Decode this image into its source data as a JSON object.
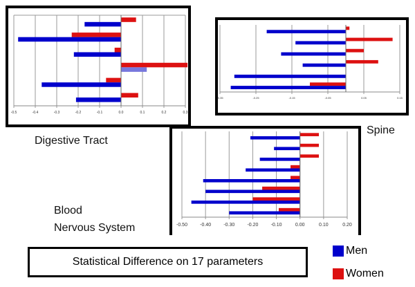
{
  "colors": {
    "men": "#0000cc",
    "women": "#dd1111",
    "men_highlight": "#7777dd",
    "grid": "#999999"
  },
  "chart_data": [
    {
      "type": "bar",
      "orientation": "horizontal",
      "title": "Digestive Tract",
      "xlim": [
        -0.5,
        0.3
      ],
      "ticks": [
        -0.5,
        -0.4,
        -0.3,
        -0.2,
        -0.1,
        0.0,
        0.1,
        0.2,
        0.3
      ],
      "tick_labels": [
        "-0.5",
        "-0.4",
        "-0.3",
        "-0.2",
        "-0.1",
        "0.0",
        "0.1",
        "0.2",
        "0.3"
      ],
      "grid": true,
      "series": [
        {
          "name": "Women",
          "values": [
            0.07,
            -0.23,
            -0.03,
            0.31,
            -0.07,
            0.08
          ]
        },
        {
          "name": "Men",
          "values": [
            -0.17,
            -0.48,
            -0.22,
            0.12,
            -0.37,
            -0.21
          ]
        }
      ],
      "highlighted_men_bar_index": 3
    },
    {
      "type": "bar",
      "orientation": "horizontal",
      "title": "Spine",
      "xlim": [
        -0.35,
        0.15
      ],
      "ticks": [
        -0.35,
        -0.25,
        -0.15,
        -0.05,
        0.05,
        0.15
      ],
      "tick_labels": [
        "-0.35",
        "-0.25",
        "-0.15",
        "-0.05",
        "0.05",
        "0.15"
      ],
      "grid": true,
      "series": [
        {
          "name": "Women",
          "values": [
            0.01,
            0.13,
            0.05,
            0.09,
            0.0,
            -0.1
          ]
        },
        {
          "name": "Men",
          "values": [
            -0.22,
            -0.14,
            -0.18,
            -0.12,
            -0.31,
            -0.32
          ]
        }
      ]
    },
    {
      "type": "bar",
      "orientation": "horizontal",
      "title": "Blood\nNervous System",
      "xlim": [
        -0.5,
        0.2
      ],
      "ticks": [
        -0.5,
        -0.4,
        -0.3,
        -0.2,
        -0.1,
        0.0,
        0.1,
        0.2
      ],
      "tick_labels": [
        "-0.50",
        "-0.40",
        "-0.30",
        "-0.20",
        "-0.10",
        "0.00",
        "0.10",
        "0.20"
      ],
      "grid": true,
      "series": [
        {
          "name": "Women",
          "values": [
            0.08,
            0.08,
            0.08,
            -0.04,
            -0.04,
            -0.16,
            -0.2,
            -0.09
          ]
        },
        {
          "name": "Men",
          "values": [
            -0.21,
            -0.11,
            -0.17,
            -0.23,
            -0.41,
            -0.4,
            -0.46,
            -0.3
          ]
        }
      ]
    }
  ],
  "labels": {
    "digestive": "Digestive Tract",
    "spine": "Spine",
    "blood": "Blood",
    "nervous": "Nervous System",
    "summary": "Statistical Difference on 17 parameters"
  },
  "legend": [
    {
      "label": "Men",
      "color": "#0000cc"
    },
    {
      "label": "Women",
      "color": "#dd1111"
    }
  ]
}
